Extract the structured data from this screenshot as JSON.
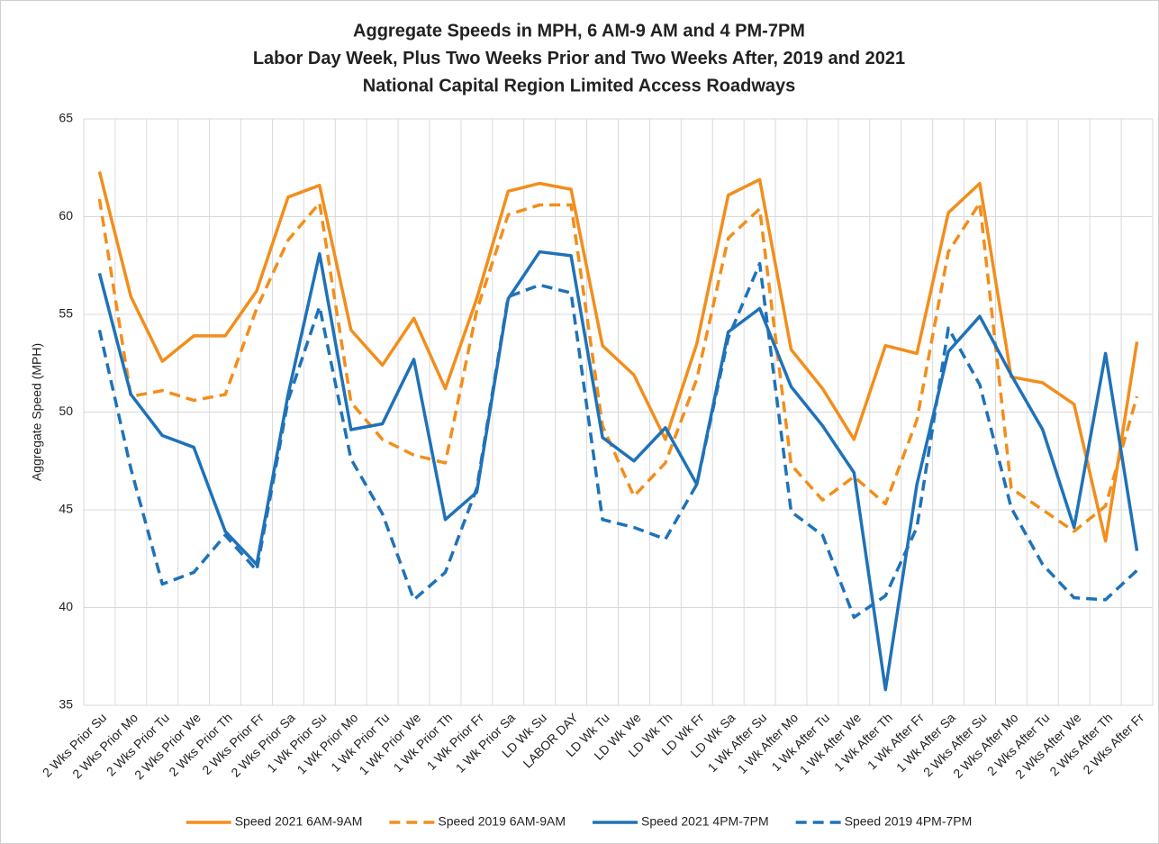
{
  "chart_data": {
    "type": "line",
    "title": [
      "Aggregate Speeds in MPH, 6 AM-9 AM and 4 PM-7PM",
      "Labor Day Week, Plus Two Weeks Prior and Two Weeks After, 2019 and 2021",
      "National Capital Region Limited Access Roadways"
    ],
    "y_label": "Aggregate Speed (MPH)",
    "categories": [
      "2 Wks Prior Su",
      "2 Wks Prior Mo",
      "2 Wks Prior Tu",
      "2 Wks Prior We",
      "2 Wks Prior Th",
      "2 Wks Prior Fr",
      "2 Wks Prior Sa",
      "1 Wk Prior Su",
      "1 Wk Prior Mo",
      "1 Wk Prior Tu",
      "1 Wk Prior We",
      "1 Wk Prior Th",
      "1 Wk Prior Fr",
      "1 Wk Prior Sa",
      "LD Wk Su",
      "LABOR DAY",
      "LD Wk Tu",
      "LD Wk We",
      "LD Wk Th",
      "LD Wk Fr",
      "LD Wk Sa",
      "1 Wk After Su",
      "1 Wk After Mo",
      "1 Wk After Tu",
      "1 Wk After We",
      "1 Wk After Th",
      "1 Wk After Fr",
      "1 Wk After Sa",
      "2 Wks After Su",
      "2 Wks After Mo",
      "2 Wks After Tu",
      "2 Wks After We",
      "2 Wks After Th",
      "2 Wks After Fr"
    ],
    "series": [
      {
        "name": "Speed 2021 6AM-9AM",
        "color": "#f28e1c",
        "dashed": false,
        "values": [
          62.3,
          55.9,
          52.6,
          53.9,
          53.9,
          56.2,
          61.0,
          61.6,
          54.2,
          52.4,
          54.8,
          51.2,
          55.8,
          61.3,
          61.7,
          61.4,
          53.4,
          51.9,
          48.6,
          53.5,
          61.1,
          61.9,
          53.2,
          51.2,
          48.6,
          53.4,
          53.0,
          60.2,
          61.7,
          51.8,
          51.5,
          50.4,
          43.4,
          53.6
        ]
      },
      {
        "name": "Speed 2019 6AM-9AM",
        "color": "#f28e1c",
        "dashed": true,
        "values": [
          60.9,
          50.8,
          51.1,
          50.6,
          50.9,
          55.3,
          58.8,
          60.7,
          50.5,
          48.6,
          47.8,
          47.4,
          55.2,
          60.1,
          60.6,
          60.6,
          49.3,
          45.7,
          47.4,
          51.7,
          58.9,
          60.4,
          47.3,
          45.5,
          46.7,
          45.3,
          49.6,
          58.2,
          60.7,
          46.1,
          45.0,
          43.9,
          45.2,
          50.8
        ]
      },
      {
        "name": "Speed 2021 4PM-7PM",
        "color": "#1f72b8",
        "dashed": false,
        "values": [
          57.1,
          50.9,
          48.8,
          48.2,
          43.9,
          42.2,
          50.9,
          58.1,
          49.1,
          49.4,
          52.7,
          44.5,
          45.9,
          55.8,
          58.2,
          58.0,
          48.7,
          47.5,
          49.2,
          46.3,
          54.1,
          55.3,
          51.3,
          49.3,
          46.9,
          35.8,
          46.3,
          53.1,
          54.9,
          51.9,
          49.1,
          44.1,
          53.0,
          42.9
        ]
      },
      {
        "name": "Speed 2019 4PM-7PM",
        "color": "#1f72b8",
        "dashed": true,
        "values": [
          54.2,
          47.1,
          41.2,
          41.8,
          43.7,
          41.9,
          50.6,
          55.4,
          47.6,
          44.8,
          40.4,
          41.8,
          46.1,
          55.9,
          56.5,
          56.1,
          44.5,
          44.1,
          43.5,
          46.3,
          53.8,
          57.6,
          44.9,
          43.7,
          39.5,
          40.6,
          44.1,
          54.3,
          51.4,
          45.1,
          42.2,
          40.5,
          40.4,
          41.9
        ]
      }
    ],
    "ylim": [
      35,
      65
    ],
    "yticks": [
      35,
      40,
      45,
      50,
      55,
      60,
      65
    ],
    "grid": true,
    "legend": "bottom"
  }
}
